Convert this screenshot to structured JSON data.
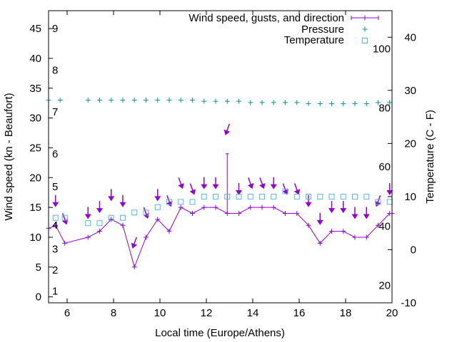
{
  "chart_data": {
    "type": "line",
    "xlabel": "Local time (Europe/Athens)",
    "ylabel": "Wind speed (kn - Beaufort)",
    "y2label": "Temperature (C - F)",
    "xlim": [
      5.2,
      20.0
    ],
    "ylim": [
      -1,
      48
    ],
    "y2lim": [
      -10,
      45
    ],
    "grid": false,
    "legend_position": "top-right",
    "x_ticks": [
      "6",
      "8",
      "10",
      "12",
      "14",
      "16",
      "18",
      "20"
    ],
    "x_tick_values": [
      6,
      8,
      10,
      12,
      14,
      16,
      18,
      20
    ],
    "y_ticks": [
      "0",
      "5",
      "10",
      "15",
      "20",
      "25",
      "30",
      "35",
      "40",
      "45"
    ],
    "y_tick_values": [
      0,
      5,
      10,
      15,
      20,
      25,
      30,
      35,
      40,
      45
    ],
    "y2_ticks": [
      "-10",
      "0",
      "10",
      "20",
      "30",
      "40"
    ],
    "y2_tick_values": [
      -10,
      0,
      10,
      20,
      30,
      40
    ],
    "beaufort_labels": [
      {
        "label": "1",
        "at": 1.0
      },
      {
        "label": "2",
        "at": 4.5
      },
      {
        "label": "3",
        "at": 8.0
      },
      {
        "label": "4",
        "at": 12.0
      },
      {
        "label": "5",
        "at": 18.5
      },
      {
        "label": "6",
        "at": 24.0
      },
      {
        "label": "7",
        "at": 31.0
      },
      {
        "label": "8",
        "at": 38.0
      },
      {
        "label": "9",
        "at": 45.0
      }
    ],
    "fahrenheit_labels": [
      {
        "label": "20",
        "at": -6.7
      },
      {
        "label": "40",
        "at": 4.4
      },
      {
        "label": "60",
        "at": 15.6
      },
      {
        "label": "80",
        "at": 26.7
      },
      {
        "label": "100",
        "at": 37.8
      }
    ],
    "colors": {
      "wind": "#9400d3",
      "pressure": "#009e73",
      "temperature": "#56b4e9",
      "axes": "#000000"
    },
    "series": [
      {
        "name": "Wind speed, gusts, and direction",
        "axis": "y",
        "style": "line-points",
        "x": [
          5.2,
          5.5,
          5.9,
          6.9,
          7.4,
          7.9,
          8.4,
          8.9,
          9.4,
          9.9,
          10.4,
          10.9,
          11.4,
          11.9,
          12.4,
          12.9,
          13.4,
          13.9,
          14.4,
          14.9,
          15.4,
          15.9,
          16.4,
          16.9,
          17.4,
          17.9,
          18.4,
          18.9,
          19.4,
          19.9,
          20.0
        ],
        "values": [
          11.5,
          12.0,
          9.0,
          10.0,
          11.0,
          13.0,
          12.0,
          5.0,
          10.0,
          13.0,
          11.0,
          15.0,
          14.0,
          15.0,
          15.0,
          14.0,
          14.0,
          15.0,
          15.0,
          15.0,
          14.0,
          14.0,
          12.0,
          9.0,
          11.0,
          11.0,
          10.0,
          10.0,
          12.0,
          14.0,
          14.0
        ],
        "gusts": [
          {
            "x": 12.9,
            "value": 24.0
          }
        ],
        "direction_arrows": [
          {
            "x": 5.5,
            "y": 16.0,
            "deg": 0
          },
          {
            "x": 5.9,
            "y": 13.0,
            "deg": 340
          },
          {
            "x": 6.9,
            "y": 14.0,
            "deg": 0
          },
          {
            "x": 7.4,
            "y": 15.0,
            "deg": 0
          },
          {
            "x": 7.9,
            "y": 17.0,
            "deg": 0
          },
          {
            "x": 8.4,
            "y": 16.0,
            "deg": 0
          },
          {
            "x": 8.9,
            "y": 9.0,
            "deg": 20
          },
          {
            "x": 9.4,
            "y": 14.0,
            "deg": 340
          },
          {
            "x": 9.9,
            "y": 17.0,
            "deg": 0
          },
          {
            "x": 10.4,
            "y": 16.0,
            "deg": 340
          },
          {
            "x": 10.9,
            "y": 19.0,
            "deg": 340
          },
          {
            "x": 11.4,
            "y": 18.0,
            "deg": 340
          },
          {
            "x": 11.9,
            "y": 19.0,
            "deg": 0
          },
          {
            "x": 12.4,
            "y": 19.0,
            "deg": 0
          },
          {
            "x": 12.9,
            "y": 28.0,
            "deg": 20
          },
          {
            "x": 13.4,
            "y": 18.0,
            "deg": 0
          },
          {
            "x": 13.9,
            "y": 19.0,
            "deg": 340
          },
          {
            "x": 14.4,
            "y": 19.0,
            "deg": 340
          },
          {
            "x": 14.9,
            "y": 19.0,
            "deg": 0
          },
          {
            "x": 15.4,
            "y": 18.0,
            "deg": 340
          },
          {
            "x": 15.9,
            "y": 18.0,
            "deg": 340
          },
          {
            "x": 16.4,
            "y": 16.0,
            "deg": 0
          },
          {
            "x": 16.9,
            "y": 13.0,
            "deg": 0
          },
          {
            "x": 17.4,
            "y": 15.0,
            "deg": 0
          },
          {
            "x": 17.9,
            "y": 15.0,
            "deg": 0
          },
          {
            "x": 18.4,
            "y": 14.0,
            "deg": 0
          },
          {
            "x": 18.9,
            "y": 14.0,
            "deg": 0
          },
          {
            "x": 19.4,
            "y": 16.0,
            "deg": 20
          },
          {
            "x": 19.9,
            "y": 18.0,
            "deg": 0
          }
        ]
      },
      {
        "name": "Pressure",
        "axis": "y",
        "style": "plus",
        "x": [
          5.2,
          5.7,
          6.9,
          7.4,
          7.9,
          8.4,
          8.9,
          9.4,
          9.9,
          10.4,
          10.9,
          11.4,
          11.9,
          12.4,
          12.9,
          13.4,
          13.9,
          14.4,
          14.9,
          15.4,
          15.9,
          16.4,
          16.9,
          17.4,
          17.9,
          18.4,
          18.9,
          19.4,
          19.9
        ],
        "values": [
          33.0,
          33.0,
          33.0,
          33.0,
          33.0,
          33.0,
          33.0,
          33.0,
          33.0,
          33.0,
          33.0,
          33.0,
          32.8,
          32.8,
          32.8,
          32.8,
          32.6,
          32.6,
          32.6,
          32.6,
          32.6,
          32.4,
          32.4,
          32.4,
          32.4,
          32.4,
          32.4,
          32.6,
          32.6
        ]
      },
      {
        "name": "Temperature",
        "axis": "y2",
        "style": "open-square",
        "x": [
          5.5,
          5.9,
          6.9,
          7.4,
          7.9,
          8.4,
          8.9,
          9.4,
          9.9,
          10.4,
          10.9,
          11.4,
          11.9,
          12.4,
          12.9,
          13.4,
          13.9,
          14.4,
          14.9,
          15.4,
          15.9,
          16.4,
          16.9,
          17.4,
          17.9,
          18.4,
          18.9,
          19.4,
          19.9
        ],
        "values": [
          6.0,
          6.0,
          5.0,
          5.0,
          6.0,
          6.0,
          7.0,
          7.0,
          8.0,
          9.0,
          9.0,
          9.0,
          10.0,
          10.0,
          10.0,
          10.0,
          10.0,
          10.0,
          10.0,
          11.0,
          10.0,
          10.0,
          10.0,
          10.0,
          10.0,
          10.0,
          10.0,
          9.0,
          9.0
        ]
      }
    ]
  }
}
